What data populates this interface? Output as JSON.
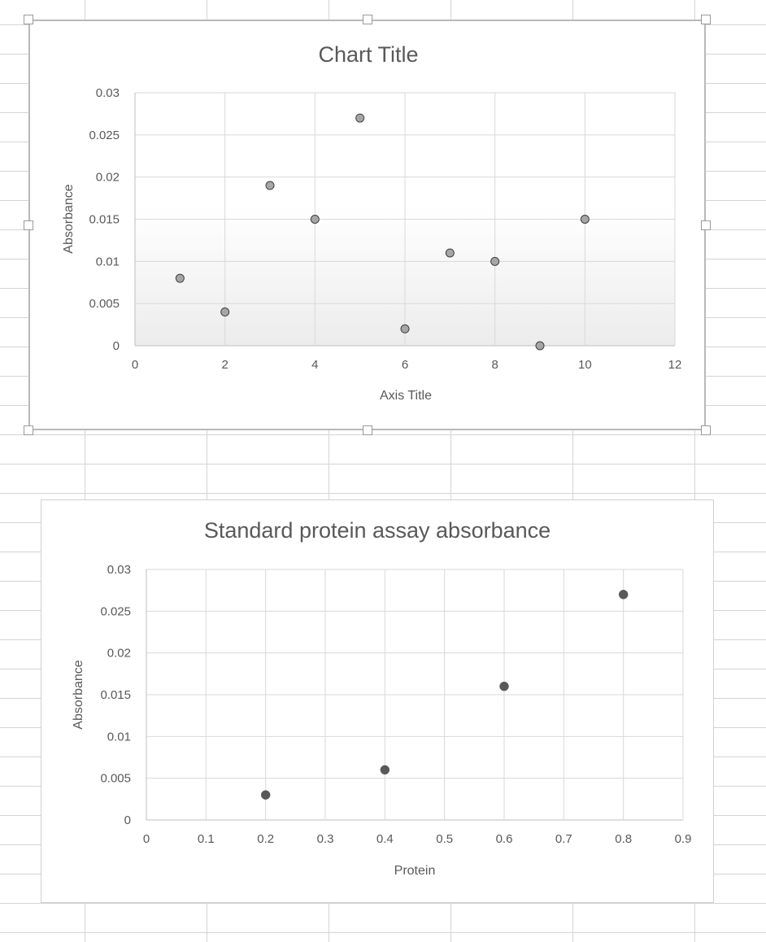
{
  "chart_data": [
    {
      "type": "scatter",
      "title": "Chart Title",
      "xlabel": "Axis Title",
      "ylabel": "Absorbance",
      "xlim": [
        0,
        12
      ],
      "ylim": [
        0,
        0.03
      ],
      "x_ticks": [
        "0",
        "2",
        "4",
        "6",
        "8",
        "10",
        "12"
      ],
      "y_ticks": [
        "0",
        "0.005",
        "0.01",
        "0.015",
        "0.02",
        "0.025",
        "0.03"
      ],
      "grid": true,
      "legend": "none",
      "selected": true,
      "plot_background": "gradient white to light gray",
      "marker_color": "#a6a6a6",
      "series": [
        {
          "x": [
            1,
            2,
            3,
            4,
            5,
            6,
            7,
            8,
            9,
            10
          ],
          "y": [
            0.008,
            0.004,
            0.019,
            0.015,
            0.027,
            0.002,
            0.011,
            0.01,
            0,
            0.015
          ]
        }
      ]
    },
    {
      "type": "scatter",
      "title": "Standard protein assay absorbance",
      "xlabel": "Protein",
      "ylabel": "Absorbance",
      "xlim": [
        0,
        0.9
      ],
      "ylim": [
        0,
        0.03
      ],
      "x_ticks": [
        "0",
        "0.1",
        "0.2",
        "0.3",
        "0.4",
        "0.5",
        "0.6",
        "0.7",
        "0.8",
        "0.9"
      ],
      "y_ticks": [
        "0",
        "0.005",
        "0.01",
        "0.015",
        "0.02",
        "0.025",
        "0.03"
      ],
      "grid": true,
      "legend": "none",
      "selected": false,
      "marker_color": "#595959",
      "series": [
        {
          "x": [
            0.2,
            0.4,
            0.6,
            0.8
          ],
          "y": [
            0.003,
            0.006,
            0.016,
            0.027
          ]
        }
      ]
    }
  ]
}
